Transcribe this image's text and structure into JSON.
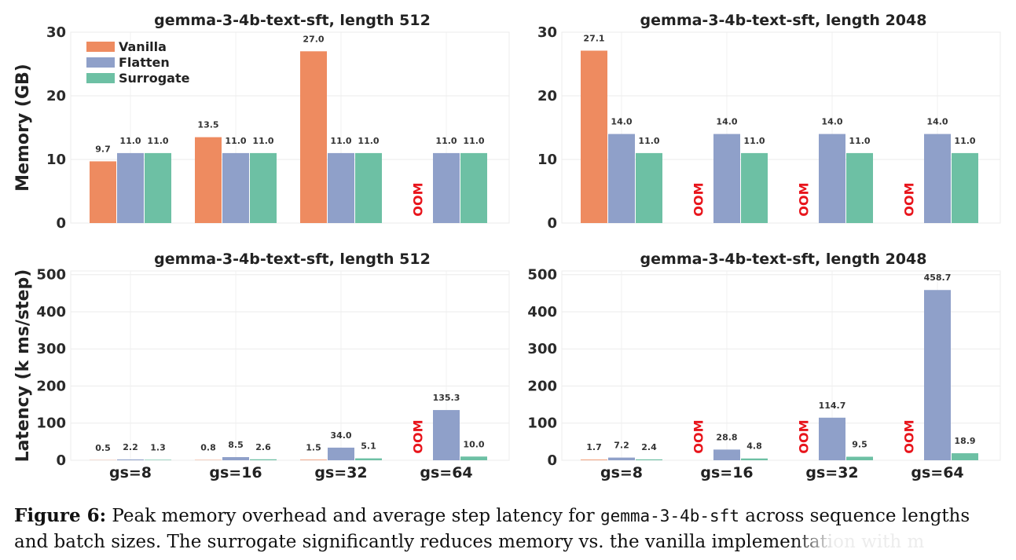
{
  "colors": {
    "Vanilla": "#ee8b60",
    "Flatten": "#8fa0c9",
    "Surrogate": "#6dc0a4",
    "oom": "#e8141b"
  },
  "legend": {
    "items": [
      "Vanilla",
      "Flatten",
      "Surrogate"
    ]
  },
  "caption": {
    "label": "Figure 6:",
    "text1": " Peak memory overhead and average step latency for ",
    "code": "gemma-3-4b-sft",
    "text2": " across sequence lengths and batch sizes. The surrogate significantly reduces memory vs. the vanilla implementation with m"
  },
  "chart_data": [
    {
      "type": "bar",
      "title": "gemma-3-4b-text-sft, length 512",
      "ylabel": "Memory (GB)",
      "xlabel": "",
      "ylim": [
        0,
        30
      ],
      "yticks": [
        0,
        10,
        20,
        30
      ],
      "categories": [
        "gs=8",
        "gs=16",
        "gs=32",
        "gs=64"
      ],
      "show_xticklabels": false,
      "series": [
        {
          "name": "Vanilla",
          "values": [
            9.7,
            13.5,
            27.0,
            null
          ],
          "labels": [
            "9.7",
            "13.5",
            "27.0",
            "OOM"
          ]
        },
        {
          "name": "Flatten",
          "values": [
            11.0,
            11.0,
            11.0,
            11.0
          ],
          "labels": [
            "11.0",
            "11.0",
            "11.0",
            "11.0"
          ]
        },
        {
          "name": "Surrogate",
          "values": [
            11.0,
            11.0,
            11.0,
            11.0
          ],
          "labels": [
            "11.0",
            "11.0",
            "11.0",
            "11.0"
          ]
        }
      ],
      "legend": "top-left"
    },
    {
      "type": "bar",
      "title": "gemma-3-4b-text-sft, length 2048",
      "ylabel": "",
      "xlabel": "",
      "ylim": [
        0,
        30
      ],
      "yticks": [
        0,
        10,
        20,
        30
      ],
      "categories": [
        "gs=8",
        "gs=16",
        "gs=32",
        "gs=64"
      ],
      "show_xticklabels": false,
      "series": [
        {
          "name": "Vanilla",
          "values": [
            27.1,
            null,
            null,
            null
          ],
          "labels": [
            "27.1",
            "OOM",
            "OOM",
            "OOM"
          ]
        },
        {
          "name": "Flatten",
          "values": [
            14.0,
            14.0,
            14.0,
            14.0
          ],
          "labels": [
            "14.0",
            "14.0",
            "14.0",
            "14.0"
          ]
        },
        {
          "name": "Surrogate",
          "values": [
            11.0,
            11.0,
            11.0,
            11.0
          ],
          "labels": [
            "11.0",
            "11.0",
            "11.0",
            "11.0"
          ]
        }
      ]
    },
    {
      "type": "bar",
      "title": "gemma-3-4b-text-sft, length 512",
      "ylabel": "Latency (k ms/step)",
      "xlabel": "",
      "ylim": [
        0,
        510
      ],
      "yticks": [
        0,
        100,
        200,
        300,
        400,
        500
      ],
      "categories": [
        "gs=8",
        "gs=16",
        "gs=32",
        "gs=64"
      ],
      "show_xticklabels": true,
      "series": [
        {
          "name": "Vanilla",
          "values": [
            0.5,
            0.8,
            1.5,
            null
          ],
          "labels": [
            "0.5",
            "0.8",
            "1.5",
            "OOM"
          ]
        },
        {
          "name": "Flatten",
          "values": [
            2.2,
            8.5,
            34.0,
            135.3
          ],
          "labels": [
            "2.2",
            "8.5",
            "34.0",
            "135.3"
          ]
        },
        {
          "name": "Surrogate",
          "values": [
            1.3,
            2.6,
            5.1,
            10.0
          ],
          "labels": [
            "1.3",
            "2.6",
            "5.1",
            "10.0"
          ]
        }
      ]
    },
    {
      "type": "bar",
      "title": "gemma-3-4b-text-sft, length 2048",
      "ylabel": "",
      "xlabel": "",
      "ylim": [
        0,
        510
      ],
      "yticks": [
        0,
        100,
        200,
        300,
        400,
        500
      ],
      "categories": [
        "gs=8",
        "gs=16",
        "gs=32",
        "gs=64"
      ],
      "show_xticklabels": true,
      "series": [
        {
          "name": "Vanilla",
          "values": [
            1.7,
            null,
            null,
            null
          ],
          "labels": [
            "1.7",
            "OOM",
            "OOM",
            "OOM"
          ]
        },
        {
          "name": "Flatten",
          "values": [
            7.2,
            28.8,
            114.7,
            458.7
          ],
          "labels": [
            "7.2",
            "28.8",
            "114.7",
            "458.7"
          ]
        },
        {
          "name": "Surrogate",
          "values": [
            2.4,
            4.8,
            9.5,
            18.9
          ],
          "labels": [
            "2.4",
            "4.8",
            "9.5",
            "18.9"
          ]
        }
      ]
    }
  ]
}
